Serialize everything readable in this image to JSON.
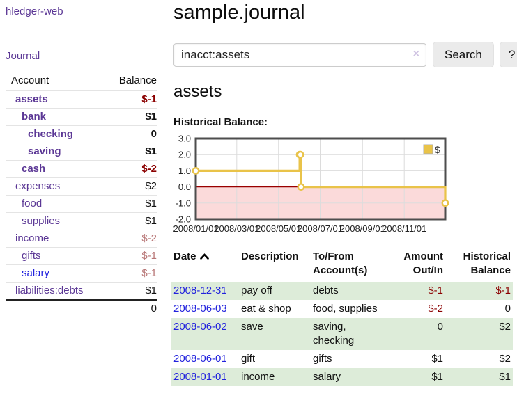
{
  "app": {
    "brand": "hledger-web"
  },
  "sidebar": {
    "journal_link": "Journal",
    "accounts_table": {
      "headers": {
        "account": "Account",
        "balance": "Balance"
      },
      "rows": [
        {
          "account": "assets",
          "depth": 0,
          "emphasis": true,
          "account_color": "purple",
          "balance": "$-1",
          "balance_style": "negative-strong"
        },
        {
          "account": "bank",
          "depth": 1,
          "emphasis": true,
          "account_color": "purple",
          "balance": "$1",
          "balance_style": "normal"
        },
        {
          "account": "checking",
          "depth": 2,
          "emphasis": true,
          "account_color": "purple",
          "balance": "0",
          "balance_style": "normal"
        },
        {
          "account": "saving",
          "depth": 2,
          "emphasis": true,
          "account_color": "purple",
          "balance": "$1",
          "balance_style": "normal"
        },
        {
          "account": "cash",
          "depth": 1,
          "emphasis": true,
          "account_color": "purple",
          "balance": "$-2",
          "balance_style": "negative-strong"
        },
        {
          "account": "expenses",
          "depth": 0,
          "emphasis": false,
          "account_color": "purple",
          "balance": "$2",
          "balance_style": "normal"
        },
        {
          "account": "food",
          "depth": 1,
          "emphasis": false,
          "account_color": "purple",
          "balance": "$1",
          "balance_style": "normal"
        },
        {
          "account": "supplies",
          "depth": 1,
          "emphasis": false,
          "account_color": "purple",
          "balance": "$1",
          "balance_style": "normal"
        },
        {
          "account": "income",
          "depth": 0,
          "emphasis": false,
          "account_color": "purple",
          "balance": "$-2",
          "balance_style": "negative-muted"
        },
        {
          "account": "gifts",
          "depth": 1,
          "emphasis": false,
          "account_color": "purple",
          "balance": "$-1",
          "balance_style": "negative-muted"
        },
        {
          "account": "salary",
          "depth": 1,
          "emphasis": false,
          "account_color": "blue",
          "balance": "$-1",
          "balance_style": "negative-muted"
        },
        {
          "account": "liabilities:debts",
          "depth": 0,
          "emphasis": false,
          "account_color": "purple",
          "balance": "$1",
          "balance_style": "normal"
        }
      ],
      "total": "0"
    }
  },
  "main": {
    "page_title": "sample.journal",
    "search": {
      "value": "inacct:assets",
      "clear_icon": "×",
      "search_button": "Search",
      "help_button": "?"
    },
    "account_heading": "assets",
    "chart_title": "Historical Balance:",
    "register_table": {
      "headers": {
        "date": "Date",
        "description": "Description",
        "accounts": "To/From Account(s)",
        "amount": "Amount Out/In",
        "balance": "Historical Balance"
      },
      "rows": [
        {
          "date": "2008-12-31",
          "description": "pay off",
          "accounts": "debts",
          "amount": "$-1",
          "amount_negative": true,
          "balance": "$-1",
          "balance_negative": true,
          "shaded": true
        },
        {
          "date": "2008-06-03",
          "description": "eat & shop",
          "accounts": "food, supplies",
          "amount": "$-2",
          "amount_negative": true,
          "balance": "0",
          "balance_negative": false,
          "shaded": false
        },
        {
          "date": "2008-06-02",
          "description": "save",
          "accounts": "saving, checking",
          "amount": "0",
          "amount_negative": false,
          "balance": "$2",
          "balance_negative": false,
          "shaded": true
        },
        {
          "date": "2008-06-01",
          "description": "gift",
          "accounts": "gifts",
          "amount": "$1",
          "amount_negative": false,
          "balance": "$2",
          "balance_negative": false,
          "shaded": false
        },
        {
          "date": "2008-01-01",
          "description": "income",
          "accounts": "salary",
          "amount": "$1",
          "amount_negative": false,
          "balance": "$1",
          "balance_negative": false,
          "shaded": true
        }
      ]
    }
  },
  "chart_data": {
    "type": "line",
    "title": "Historical Balance",
    "step": true,
    "series": [
      {
        "name": "$",
        "points": [
          [
            "2008-01-01",
            1
          ],
          [
            "2008-06-01",
            2
          ],
          [
            "2008-06-02",
            2
          ],
          [
            "2008-06-03",
            0
          ],
          [
            "2008-12-31",
            -1
          ]
        ]
      }
    ],
    "x_ticks": [
      "2008/01/01",
      "2008/03/01",
      "2008/05/01",
      "2008/07/01",
      "2008/09/01",
      "2008/11/01"
    ],
    "y_ticks": [
      3.0,
      2.0,
      1.0,
      0.0,
      -1.0,
      -2.0
    ],
    "ylim": [
      -2,
      3
    ],
    "xlim": [
      "2008-01-01",
      "2008-12-31"
    ],
    "grid": true,
    "legend_position": "top-right",
    "line_color": "#e9c349",
    "marker_fill": "#ffffff",
    "zero_line_color": "#990000",
    "negative_region_fill": "#fbdada",
    "plot_border_color": "#4d4d4d"
  },
  "colors": {
    "purple_link": "#5b3795",
    "blue_link": "#2222dd",
    "negative_strong": "#8b0000",
    "negative_muted": "#b87777",
    "row_stripe_green": "#ddecd9"
  }
}
